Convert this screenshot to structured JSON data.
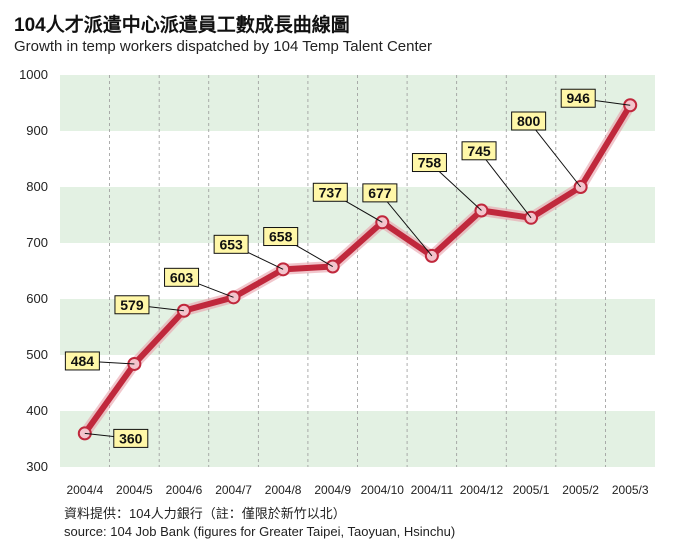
{
  "chart_data": {
    "type": "line",
    "title": "104人才派遣中心派遣員工數成長曲線圖",
    "subtitle": "Growth in temp workers dispatched by 104 Temp Talent Center",
    "categories": [
      "2004/4",
      "2004/5",
      "2004/6",
      "2004/7",
      "2004/8",
      "2004/9",
      "2004/10",
      "2004/11",
      "2004/12",
      "2005/1",
      "2005/2",
      "2005/3"
    ],
    "values": [
      360,
      484,
      579,
      603,
      653,
      658,
      737,
      677,
      758,
      745,
      800,
      946
    ],
    "ylim": [
      300,
      1000
    ],
    "yticks": [
      300,
      400,
      500,
      600,
      700,
      800,
      900,
      1000
    ],
    "xlabel": "",
    "ylabel": "",
    "grid": "alternating horizontal bands, dashed vertical lines",
    "line_color": "#c0283c",
    "band_color": "#e3f1e3",
    "label_box_color": "#fff7a8"
  },
  "notes": {
    "source_zh": "資料提供：104人力銀行（註：僅限於新竹以北）",
    "source_en": "source: 104 Job Bank (figures for Greater Taipei, Taoyuan, Hsinchu)"
  }
}
